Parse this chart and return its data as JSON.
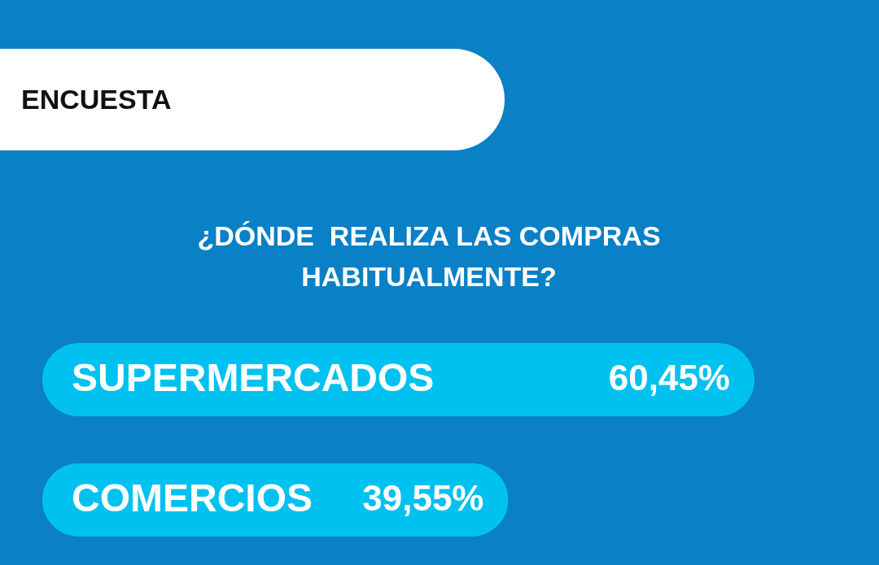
{
  "chart_data": {
    "type": "bar",
    "orientation": "horizontal",
    "title": "¿DÓNDE  REALIZA LAS COMPRAS HABITUALMENTE?",
    "annotations": [
      "ENCUESTA"
    ],
    "categories": [
      "SUPERMERCADOS",
      "COMERCIOS"
    ],
    "values": [
      60.45,
      39.55
    ],
    "value_labels": [
      "60,45%",
      "39,55%"
    ],
    "color": "#00c1ef"
  }
}
